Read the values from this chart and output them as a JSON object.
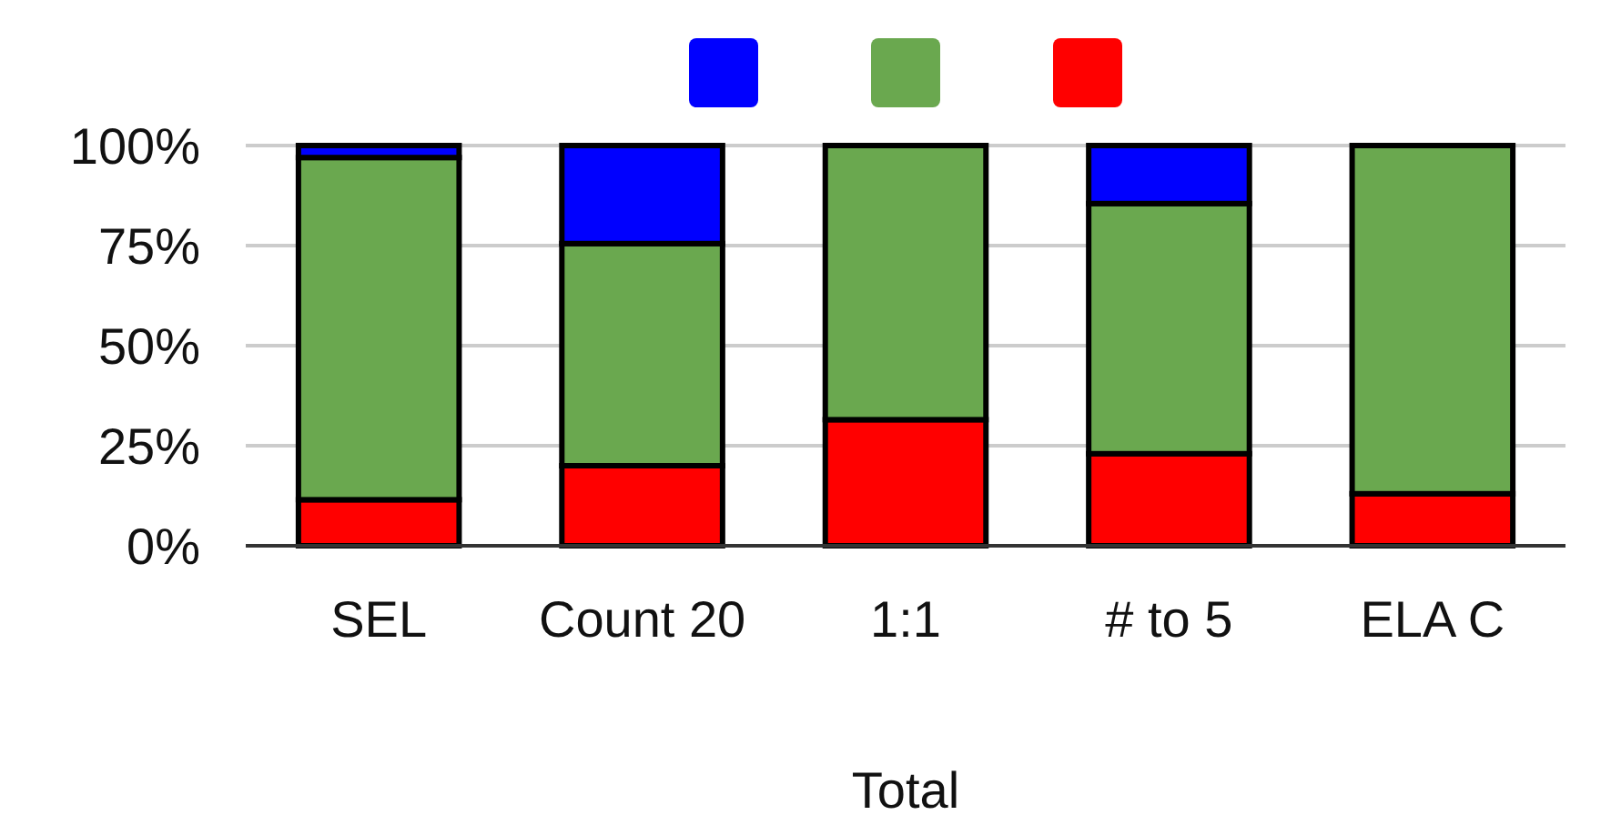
{
  "chart_data": {
    "type": "bar",
    "stacked": true,
    "xlabel": "Total",
    "categories": [
      "SEL",
      "Count 20",
      "1:1",
      "# to 5",
      "ELA C"
    ],
    "series": [
      {
        "color": "#ff0000",
        "values": [
          11.5,
          20,
          31.5,
          23,
          13
        ]
      },
      {
        "color": "#6aa84f",
        "values": [
          85.5,
          55.5,
          68.5,
          62.5,
          87
        ]
      },
      {
        "color": "#0000ff",
        "values": [
          3,
          24.5,
          0,
          14.5,
          0
        ]
      }
    ],
    "ylim": [
      0,
      100
    ],
    "yticks": [
      {
        "value": 0,
        "label": "0%"
      },
      {
        "value": 25,
        "label": "25%"
      },
      {
        "value": 50,
        "label": "50%"
      },
      {
        "value": 75,
        "label": "75%"
      },
      {
        "value": 100,
        "label": "100%"
      }
    ],
    "grid": "y"
  }
}
